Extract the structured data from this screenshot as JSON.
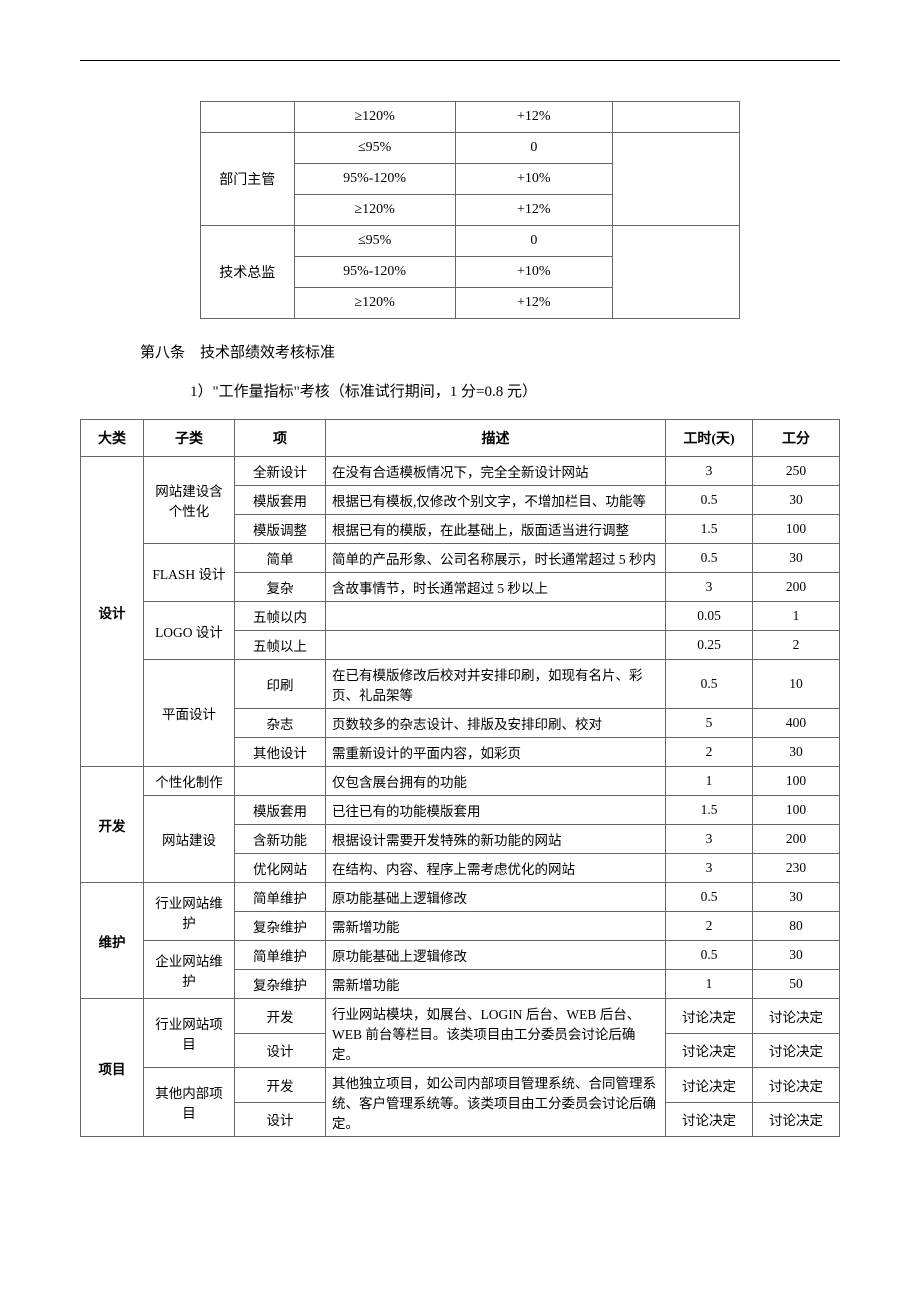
{
  "table1": {
    "rows": [
      {
        "role": "",
        "range": "≥120%",
        "bonus": "+12%",
        "note": ""
      },
      {
        "role": "部门主管",
        "range": "≤95%",
        "bonus": "0",
        "note": ""
      },
      {
        "role": "",
        "range": "95%-120%",
        "bonus": "+10%",
        "note": ""
      },
      {
        "role": "",
        "range": "≥120%",
        "bonus": "+12%",
        "note": ""
      },
      {
        "role": "技术总监",
        "range": "≤95%",
        "bonus": "0",
        "note": ""
      },
      {
        "role": "",
        "range": "95%-120%",
        "bonus": "+10%",
        "note": ""
      },
      {
        "role": "",
        "range": "≥120%",
        "bonus": "+12%",
        "note": ""
      }
    ]
  },
  "article8": "第八条　技术部绩效考核标准",
  "item1": "1）\"工作量指标\"考核（标准试行期间，1 分=0.8 元）",
  "t2": {
    "headers": [
      "大类",
      "子类",
      "项",
      "描述",
      "工时(天)",
      "工分"
    ],
    "cat_design": "设计",
    "cat_dev": "开发",
    "cat_maint": "维护",
    "cat_proj": "项目",
    "sub_website": "网站建设含个性化",
    "sub_flash": "FLASH 设计",
    "sub_logo": "LOGO 设计",
    "sub_graphic": "平面设计",
    "sub_custom": "个性化制作",
    "sub_webdev": "网站建设",
    "sub_industry": "行业网站维护",
    "sub_enterprise": "企业网站维护",
    "sub_indproj": "行业网站项目",
    "sub_intproj": "其他内部项目",
    "r": [
      {
        "item": "全新设计",
        "desc": "在没有合适模板情况下，完全全新设计网站",
        "hr": "3",
        "pt": "250"
      },
      {
        "item": "模版套用",
        "desc": "根据已有模板,仅修改个别文字，不增加栏目、功能等",
        "hr": "0.5",
        "pt": "30"
      },
      {
        "item": "模版调整",
        "desc": "根据已有的模版，在此基础上，版面适当进行调整",
        "hr": "1.5",
        "pt": "100"
      },
      {
        "item": "简单",
        "desc": "简单的产品形象、公司名称展示，时长通常超过 5 秒内",
        "hr": "0.5",
        "pt": "30"
      },
      {
        "item": "复杂",
        "desc": "含故事情节，时长通常超过 5 秒以上",
        "hr": "3",
        "pt": "200"
      },
      {
        "item": "五帧以内",
        "desc": "",
        "hr": "0.05",
        "pt": "1"
      },
      {
        "item": "五帧以上",
        "desc": "",
        "hr": "0.25",
        "pt": "2"
      },
      {
        "item": "印刷",
        "desc": "在已有模版修改后校对并安排印刷，如现有名片、彩页、礼品架等",
        "hr": "0.5",
        "pt": "10"
      },
      {
        "item": "杂志",
        "desc": "页数较多的杂志设计、排版及安排印刷、校对",
        "hr": "5",
        "pt": "400"
      },
      {
        "item": "其他设计",
        "desc": "需重新设计的平面内容，如彩页",
        "hr": "2",
        "pt": "30"
      },
      {
        "item": "",
        "desc": "仅包含展台拥有的功能",
        "hr": "1",
        "pt": "100"
      },
      {
        "item": "模版套用",
        "desc": "已往已有的功能模版套用",
        "hr": "1.5",
        "pt": "100"
      },
      {
        "item": "含新功能",
        "desc": "根据设计需要开发特殊的新功能的网站",
        "hr": "3",
        "pt": "200"
      },
      {
        "item": "优化网站",
        "desc": "在结构、内容、程序上需考虑优化的网站",
        "hr": "3",
        "pt": "230"
      },
      {
        "item": "简单维护",
        "desc": "原功能基础上逻辑修改",
        "hr": "0.5",
        "pt": "30"
      },
      {
        "item": "复杂维护",
        "desc": "需新增功能",
        "hr": "2",
        "pt": "80"
      },
      {
        "item": "简单维护",
        "desc": "原功能基础上逻辑修改",
        "hr": "0.5",
        "pt": "30"
      },
      {
        "item": "复杂维护",
        "desc": "需新增功能",
        "hr": "1",
        "pt": "50"
      },
      {
        "item": "开发",
        "desc": "行业网站模块，如展台、LOGIN 后台、WEB 后台、WEB 前台等栏目。该类项目由工分委员会讨论后确定。",
        "hr": "讨论决定",
        "pt": "讨论决定"
      },
      {
        "item": "设计",
        "desc": "",
        "hr": "讨论决定",
        "pt": "讨论决定"
      },
      {
        "item": "开发",
        "desc": "其他独立项目，如公司内部项目管理系统、合同管理系统、客户管理系统等。该类项目由工分委员会讨论后确定。",
        "hr": "讨论决定",
        "pt": "讨论决定"
      },
      {
        "item": "设计",
        "desc": "",
        "hr": "讨论决定",
        "pt": "讨论决定"
      }
    ]
  }
}
